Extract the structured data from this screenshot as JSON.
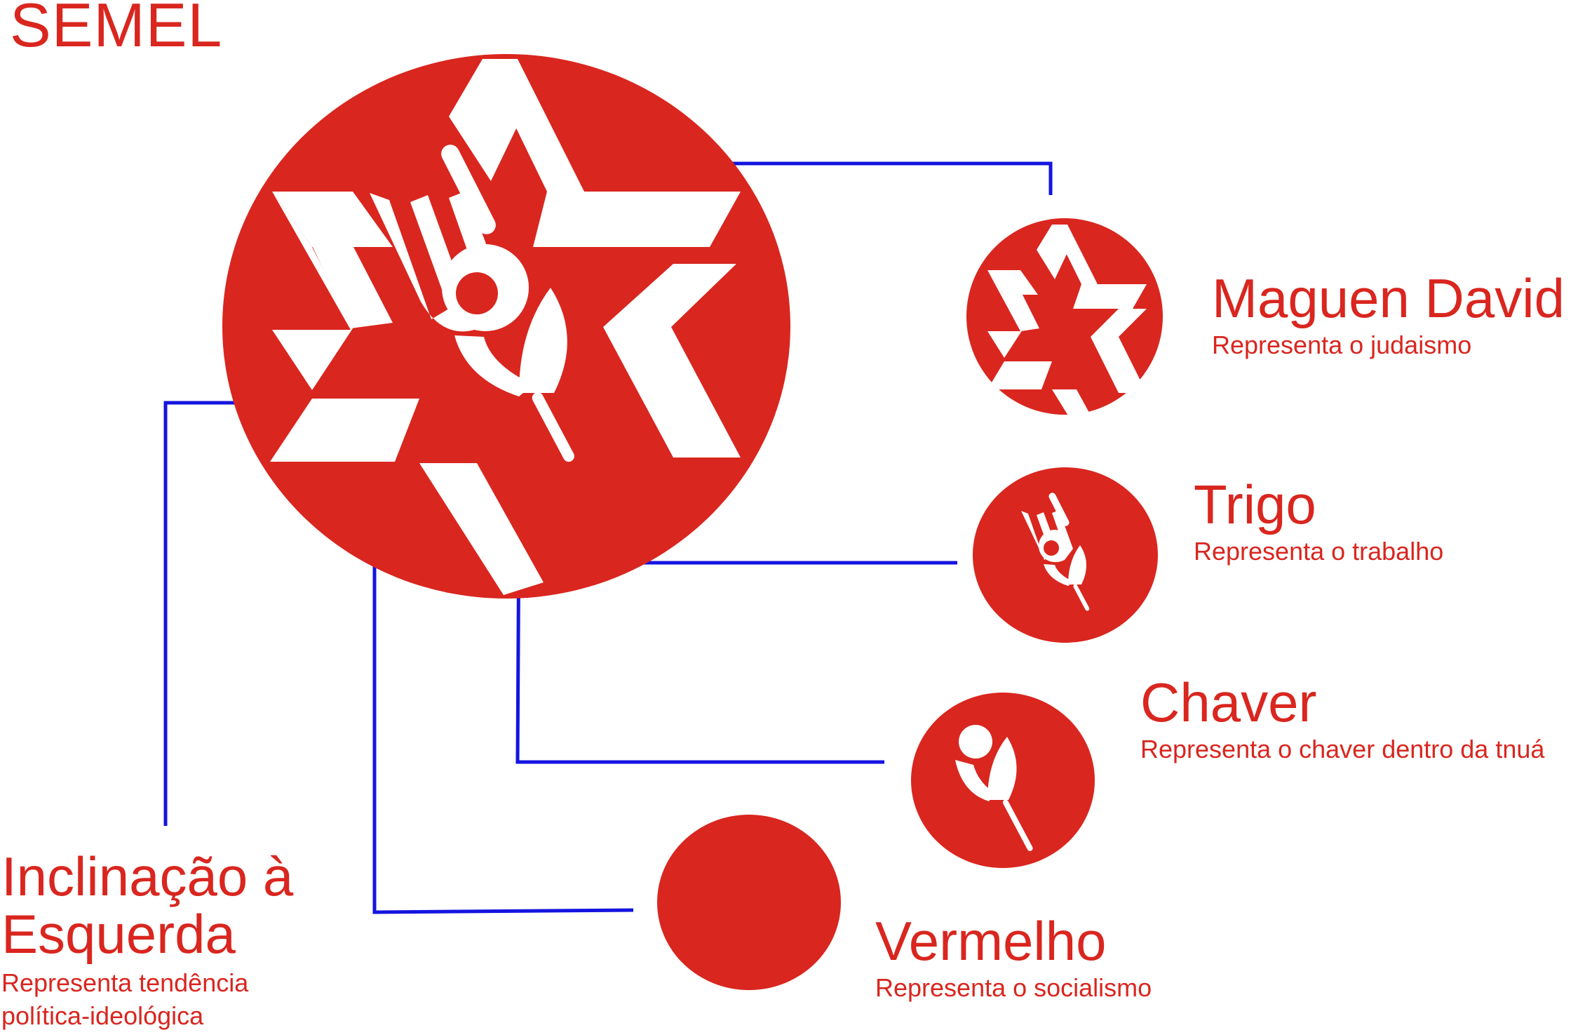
{
  "title": "SEMEL",
  "colors": {
    "red": "#d9261f",
    "blue": "#1414e0",
    "white": "#ffffff"
  },
  "components": [
    {
      "id": "maguen",
      "title": "Maguen David",
      "description": "Representa o judaismo",
      "icon": "star-of-david-icon"
    },
    {
      "id": "trigo",
      "title": "Trigo",
      "description": "Representa o trabalho",
      "icon": "wheat-icon"
    },
    {
      "id": "chaver",
      "title": "Chaver",
      "description": "Representa o chaver dentro da tnuá",
      "icon": "chaver-figure-icon"
    },
    {
      "id": "vermelho",
      "title": "Vermelho",
      "description": "Representa o socialismo",
      "icon": "red-circle-icon"
    }
  ],
  "inclinacao": {
    "title_line1": "Inclinação à",
    "title_line2": "Esquerda",
    "description_line1": "Representa tendência",
    "description_line2": "política-ideológica"
  }
}
